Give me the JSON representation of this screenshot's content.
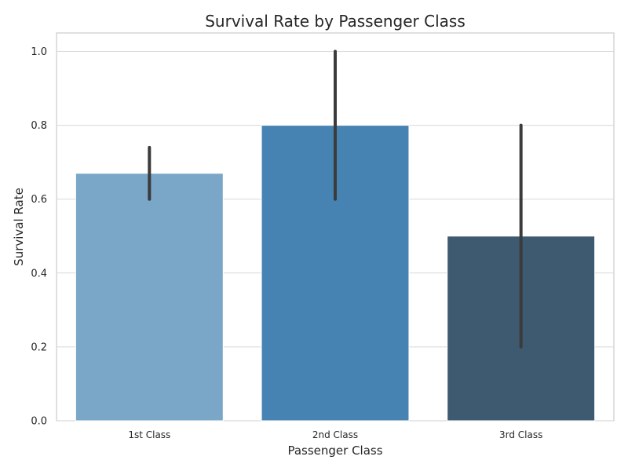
{
  "chart_data": {
    "type": "bar",
    "title": "Survival Rate by Passenger Class",
    "xlabel": "Passenger Class",
    "ylabel": "Survival Rate",
    "categories": [
      "1st Class",
      "2nd Class",
      "3rd Class"
    ],
    "values": [
      0.67,
      0.8,
      0.5
    ],
    "error_low": [
      0.6,
      0.6,
      0.2
    ],
    "error_high": [
      0.74,
      1.0,
      0.8
    ],
    "colors": [
      "#7aa6c8",
      "#4683b2",
      "#3e5a71"
    ],
    "ylim": [
      0,
      1.05
    ],
    "yticks": [
      0.0,
      0.2,
      0.4,
      0.6,
      0.8,
      1.0
    ],
    "ytick_labels": [
      "0.0",
      "0.2",
      "0.4",
      "0.6",
      "0.8",
      "1.0"
    ],
    "grid": true
  }
}
